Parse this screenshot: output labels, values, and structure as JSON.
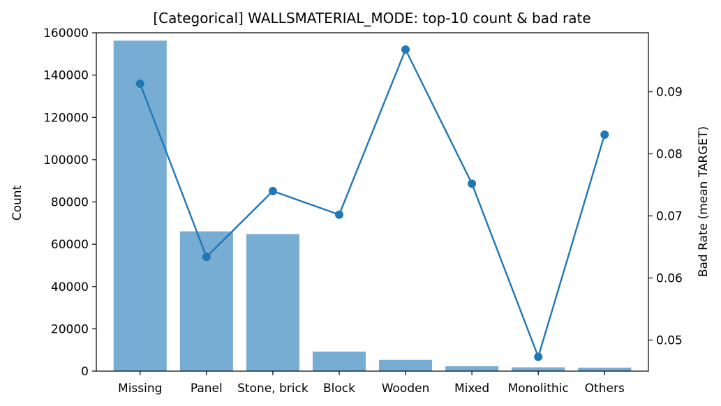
{
  "chart_data": {
    "type": "bar",
    "title": "[Categorical] WALLSMATERIAL_MODE: top-10 count & bad rate",
    "xlabel": "",
    "ylabel": "Count",
    "y2label": "Bad Rate (mean TARGET)",
    "categories": [
      "Missing",
      "Panel",
      "Stone, brick",
      "Block",
      "Wooden",
      "Mixed",
      "Monolithic",
      "Others"
    ],
    "series": [
      {
        "type": "bar",
        "axis": "left",
        "values": [
          156300,
          66100,
          64800,
          9250,
          5350,
          2300,
          1800,
          1650
        ]
      },
      {
        "type": "line",
        "axis": "right",
        "values": [
          0.0913,
          0.0634,
          0.074,
          0.0702,
          0.0968,
          0.0752,
          0.0473,
          0.0831
        ]
      }
    ],
    "ylim": [
      0,
      160000
    ],
    "yticks": [
      "0",
      "20000",
      "40000",
      "60000",
      "80000",
      "100000",
      "120000",
      "140000",
      "160000"
    ],
    "y2lim": [
      0.045,
      0.0995
    ],
    "y2ticks": [
      "0.05",
      "0.06",
      "0.07",
      "0.08",
      "0.09"
    ],
    "grid": false,
    "colors": {
      "bar": "#77acd3",
      "line": "#1f77b4"
    }
  }
}
